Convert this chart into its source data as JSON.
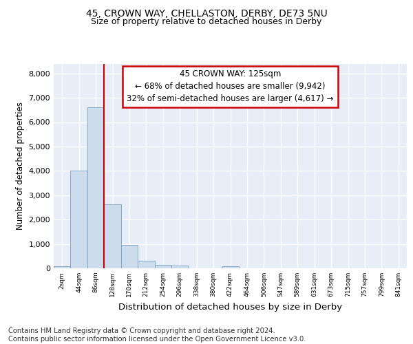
{
  "title1": "45, CROWN WAY, CHELLASTON, DERBY, DE73 5NU",
  "title2": "Size of property relative to detached houses in Derby",
  "xlabel": "Distribution of detached houses by size in Derby",
  "ylabel": "Number of detached properties",
  "footnote": "Contains HM Land Registry data © Crown copyright and database right 2024.\nContains public sector information licensed under the Open Government Licence v3.0.",
  "bar_labels": [
    "2sqm",
    "44sqm",
    "86sqm",
    "128sqm",
    "170sqm",
    "212sqm",
    "254sqm",
    "296sqm",
    "338sqm",
    "380sqm",
    "422sqm",
    "464sqm",
    "506sqm",
    "547sqm",
    "589sqm",
    "631sqm",
    "673sqm",
    "715sqm",
    "757sqm",
    "799sqm",
    "841sqm"
  ],
  "bar_values": [
    75,
    4000,
    6600,
    2620,
    960,
    320,
    130,
    100,
    0,
    0,
    80,
    0,
    0,
    0,
    0,
    0,
    0,
    0,
    0,
    0,
    0
  ],
  "bar_color": "#cddcec",
  "bar_edge_color": "#7aa0c0",
  "vline_color": "#cc0000",
  "annotation_text": "45 CROWN WAY: 125sqm\n← 68% of detached houses are smaller (9,942)\n32% of semi-detached houses are larger (4,617) →",
  "annotation_box_color": "#cc0000",
  "ylim": [
    0,
    8400
  ],
  "yticks": [
    0,
    1000,
    2000,
    3000,
    4000,
    5000,
    6000,
    7000,
    8000
  ],
  "bg_color": "#e8eef8",
  "title1_fontsize": 10,
  "title2_fontsize": 9,
  "ylabel_fontsize": 8.5,
  "xlabel_fontsize": 9.5,
  "footnote_fontsize": 7.2
}
